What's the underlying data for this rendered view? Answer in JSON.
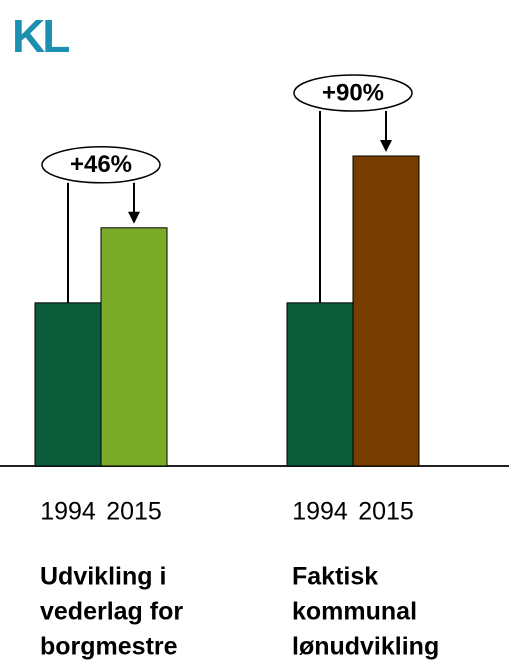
{
  "logo": "KL",
  "chart_data": [
    {
      "type": "bar",
      "categories": [
        "1994",
        "2015"
      ],
      "values": [
        100,
        146
      ],
      "colors": [
        "#0c5b3b",
        "#7aab29"
      ],
      "annotation": "+46%",
      "xlabel": [
        "Udvikling i",
        "vederlag for",
        "borgmestre"
      ]
    },
    {
      "type": "bar",
      "categories": [
        "1994",
        "2015"
      ],
      "values": [
        100,
        190
      ],
      "colors": [
        "#0c5b3b",
        "#773c00"
      ],
      "annotation": "+90%",
      "xlabel": [
        "Faktisk",
        "kommunal",
        "lønudvikling"
      ]
    }
  ]
}
